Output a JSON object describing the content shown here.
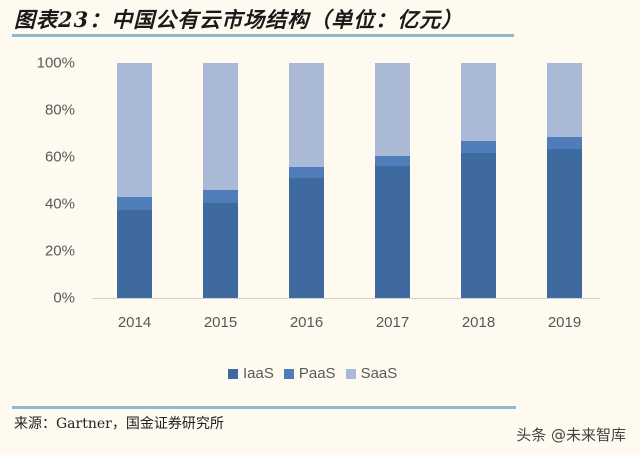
{
  "header": {
    "title": "图表23：中国公有云市场结构（单位：亿元）"
  },
  "footer": {
    "source": "来源：Gartner，国金证券研究所",
    "watermark": "头条 @未来智库"
  },
  "colors": {
    "IaaS": "#3F6A9F",
    "PaaS": "#4F7DBA",
    "SaaS": "#A9B9D6",
    "background": "#FEFAEF",
    "rule": "#8DB8D0"
  },
  "chart_data": {
    "type": "bar",
    "stacked": true,
    "percent_stacked": true,
    "title": "中国公有云市场结构（单位：亿元）",
    "xlabel": "",
    "ylabel": "",
    "ylim": [
      0,
      100
    ],
    "yticks": [
      "0%",
      "20%",
      "40%",
      "60%",
      "80%",
      "100%"
    ],
    "categories": [
      "2014",
      "2015",
      "2016",
      "2017",
      "2018",
      "2019"
    ],
    "series": [
      {
        "name": "IaaS",
        "values": [
          37.4,
          40.4,
          51.1,
          56.2,
          61.7,
          63.4
        ]
      },
      {
        "name": "PaaS",
        "values": [
          5.5,
          5.5,
          4.7,
          4.3,
          5.1,
          5.1
        ]
      },
      {
        "name": "SaaS",
        "values": [
          57.1,
          54.1,
          44.2,
          39.5,
          33.2,
          31.5
        ]
      }
    ],
    "legend": [
      "IaaS",
      "PaaS",
      "SaaS"
    ],
    "legend_position": "bottom",
    "grid": false
  }
}
